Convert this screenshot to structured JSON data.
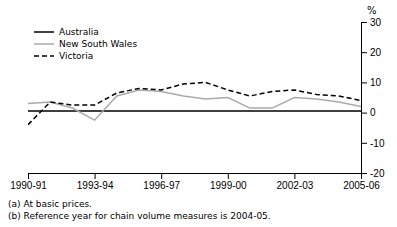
{
  "chart_data": {
    "type": "line",
    "ylabel": "%",
    "annotations": [
      "(a) At basic prices.",
      "(b) Reference year for chain volume measures is 2004-05."
    ],
    "x": [
      0,
      1,
      2,
      3,
      4,
      5,
      6,
      7,
      8,
      9,
      10,
      11,
      12,
      13,
      14,
      15
    ],
    "xlim": [
      0,
      15
    ],
    "xticks": [
      {
        "value": 0,
        "label": "1990-91"
      },
      {
        "value": 3,
        "label": "1993-94"
      },
      {
        "value": 6,
        "label": "1996-97"
      },
      {
        "value": 9,
        "label": "1999-00"
      },
      {
        "value": 12,
        "label": "2002-03"
      },
      {
        "value": 15,
        "label": "2005-06"
      }
    ],
    "ylim": [
      -20,
      30
    ],
    "yticks": [
      -20,
      -10,
      0,
      10,
      20,
      30
    ],
    "series": [
      {
        "name": "Australia",
        "color": "#000000",
        "line_style": "solid",
        "values": [
          0.5,
          0.5,
          0.5,
          0.5,
          0.5,
          0.5,
          0.5,
          0.5,
          0.5,
          0.5,
          0.5,
          0.5,
          0.5,
          0.5,
          0.5,
          0.5
        ]
      },
      {
        "name": "New South Wales",
        "color": "#aaaaaa",
        "line_style": "solid",
        "values": [
          3.0,
          3.5,
          1.5,
          -2.5,
          5.5,
          7.5,
          7.0,
          5.5,
          4.5,
          5.0,
          1.5,
          1.5,
          5.0,
          4.5,
          3.5,
          2.0
        ]
      },
      {
        "name": "Victoria",
        "color": "#000000",
        "line_style": "dashed",
        "values": [
          -4.0,
          3.5,
          2.5,
          2.5,
          6.5,
          8.0,
          7.5,
          9.5,
          10.0,
          7.5,
          5.5,
          7.0,
          7.5,
          6.0,
          5.5,
          4.0
        ]
      }
    ],
    "grid": false,
    "legend": "top-left"
  }
}
